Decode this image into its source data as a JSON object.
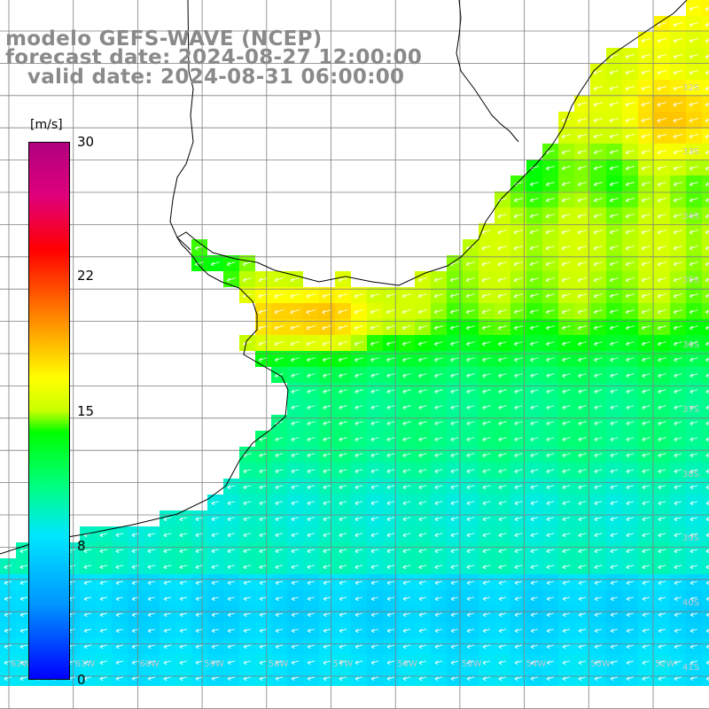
{
  "header": {
    "line1": "modelo GEFS-WAVE (NCEP)",
    "line2": "forecast date: 2024-08-27 12:00:00",
    "line3": "   valid date: 2024-08-31 06:00:00"
  },
  "colorbar": {
    "unit": "[m/s]",
    "ticks": [
      "30",
      "22",
      "15",
      "8",
      "0"
    ],
    "min": 0,
    "max": 30
  },
  "map": {
    "lat_labels": [
      "32S",
      "33S",
      "34S",
      "35S",
      "36S",
      "37S",
      "38S",
      "39S",
      "40S",
      "41S"
    ],
    "lon_labels": [
      "62W",
      "61W",
      "60W",
      "59W",
      "58W",
      "57W",
      "56W",
      "55W",
      "54W",
      "53W",
      "52W"
    ],
    "land_color": "#ffffff",
    "grid_color": "#7f7f7f",
    "coast_color": "#000000",
    "arrow_color": "#ffffff"
  }
}
